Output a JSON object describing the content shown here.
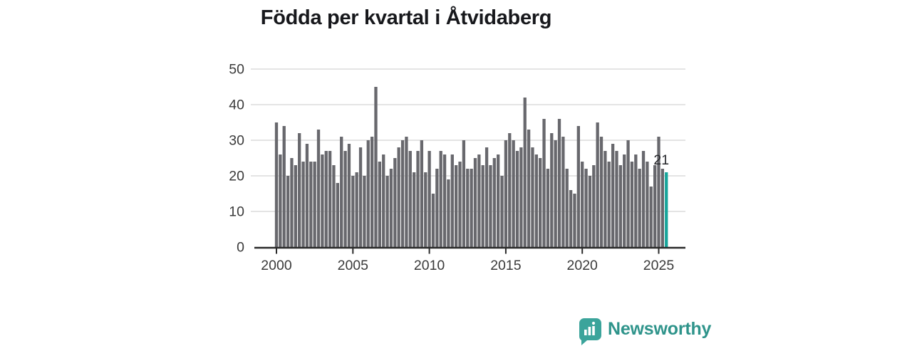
{
  "title": "Födda per kvartal i Åtvidaberg",
  "chart_data": {
    "type": "bar",
    "title": "Födda per kvartal i Åtvidaberg",
    "x_start": "2000-Q1",
    "frequency": "quarterly",
    "values": [
      35,
      26,
      34,
      20,
      25,
      23,
      32,
      24,
      29,
      24,
      24,
      33,
      26,
      27,
      27,
      23,
      18,
      31,
      27,
      29,
      20,
      21,
      28,
      20,
      30,
      31,
      45,
      24,
      26,
      20,
      22,
      25,
      28,
      30,
      31,
      27,
      21,
      27,
      30,
      21,
      27,
      15,
      22,
      27,
      26,
      19,
      26,
      23,
      24,
      30,
      22,
      22,
      25,
      26,
      23,
      28,
      23,
      25,
      26,
      20,
      30,
      32,
      30,
      27,
      28,
      42,
      33,
      28,
      26,
      25,
      36,
      22,
      32,
      30,
      36,
      31,
      22,
      16,
      15,
      34,
      24,
      22,
      20,
      23,
      35,
      31,
      27,
      24,
      29,
      27,
      23,
      26,
      30,
      24,
      26,
      22,
      27,
      24,
      17,
      23,
      31,
      22,
      21
    ],
    "x_tick_labels": [
      "2000",
      "2005",
      "2010",
      "2015",
      "2020",
      "2025"
    ],
    "x_ticks_every_n_bars": 20,
    "y_ticks": [
      0,
      10,
      20,
      30,
      40,
      50
    ],
    "ylim": [
      0,
      50
    ],
    "grid": true,
    "legend": false,
    "bar_color": "#68686d",
    "highlight": {
      "index": 102,
      "label": "21",
      "color": "#16a59b"
    },
    "axis_color": "#2a2a2a",
    "grid_color": "#dcdcdc",
    "tick_label_color": "#3a3a3a",
    "annotation_color": "#26272b"
  },
  "footer": {
    "brand": "Newsworthy",
    "brand_color": "#2f948b",
    "brand_icon_color": "#3ba49b",
    "brand_icon": "bar-chart-speech-bubble"
  }
}
